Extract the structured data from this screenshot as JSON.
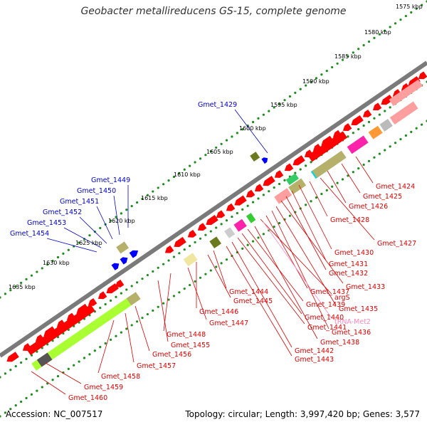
{
  "title": "Geobacter metallireducens GS-15, complete genome",
  "footer": {
    "accession": "Accession: NC_007517",
    "summary": "Topology: circular; Length: 3,997,420 bp; Genes: 3,577"
  },
  "colors": {
    "backbone": "#7a7a7a",
    "cds": "#ff0000",
    "tick_dots": "#1e8c1e",
    "label_forward": "#0000cc",
    "label_reverse": "#dd0000",
    "label_rna": "#ff88bb",
    "olive": "#b5b06a",
    "lime": "#aaff33",
    "salmon": "#ff9e9e",
    "magenta": "#ff22aa",
    "cyan": "#00d7e0",
    "blue_feature": "#0000ff"
  },
  "scale_ticks": [
    {
      "label": "1575 kbp",
      "kbp": 1575
    },
    {
      "label": "1580 kbp",
      "kbp": 1580
    },
    {
      "label": "1585 kbp",
      "kbp": 1585
    },
    {
      "label": "1590 kbp",
      "kbp": 1590
    },
    {
      "label": "1595 kbp",
      "kbp": 1595
    },
    {
      "label": "1600 kbp",
      "kbp": 1600
    },
    {
      "label": "1605 kbp",
      "kbp": 1605
    },
    {
      "label": "1610 kbp",
      "kbp": 1610
    },
    {
      "label": "1615 kbp",
      "kbp": 1615
    },
    {
      "label": "1620 kbp",
      "kbp": 1620
    },
    {
      "label": "1625 kbp",
      "kbp": 1625
    },
    {
      "label": "1630 kbp",
      "kbp": 1630
    },
    {
      "label": "1635 kbp",
      "kbp": 1635
    }
  ],
  "forward_labels": [
    {
      "name": "Gmet_1429"
    },
    {
      "name": "Gmet_1449"
    },
    {
      "name": "Gmet_1450"
    },
    {
      "name": "Gmet_1451"
    },
    {
      "name": "Gmet_1452"
    },
    {
      "name": "Gmet_1453"
    },
    {
      "name": "Gmet_1454"
    }
  ],
  "reverse_labels": [
    {
      "name": "Gmet_1424"
    },
    {
      "name": "Gmet_1425"
    },
    {
      "name": "Gmet_1426"
    },
    {
      "name": "Gmet_1427"
    },
    {
      "name": "Gmet_1428"
    },
    {
      "name": "Gmet_1430"
    },
    {
      "name": "Gmet_1431"
    },
    {
      "name": "Gmet_1432"
    },
    {
      "name": "Gmet_1433"
    },
    {
      "name": "Gmet_1435"
    },
    {
      "name": "Gmet_1436"
    },
    {
      "name": "Gmet_1437"
    },
    {
      "name": "argS"
    },
    {
      "name": "tRNA-Met2"
    },
    {
      "name": "Gmet_1438"
    },
    {
      "name": "Gmet_1439"
    },
    {
      "name": "Gmet_1440"
    },
    {
      "name": "Gmet_1441"
    },
    {
      "name": "Gmet_1442"
    },
    {
      "name": "Gmet_1443"
    },
    {
      "name": "Gmet_1444"
    },
    {
      "name": "Gmet_1445"
    },
    {
      "name": "Gmet_1446"
    },
    {
      "name": "Gmet_1447"
    },
    {
      "name": "Gmet_1448"
    },
    {
      "name": "Gmet_1455"
    },
    {
      "name": "Gmet_1456"
    },
    {
      "name": "Gmet_1457"
    },
    {
      "name": "Gmet_1458"
    },
    {
      "name": "Gmet_1459"
    },
    {
      "name": "Gmet_1460"
    }
  ]
}
